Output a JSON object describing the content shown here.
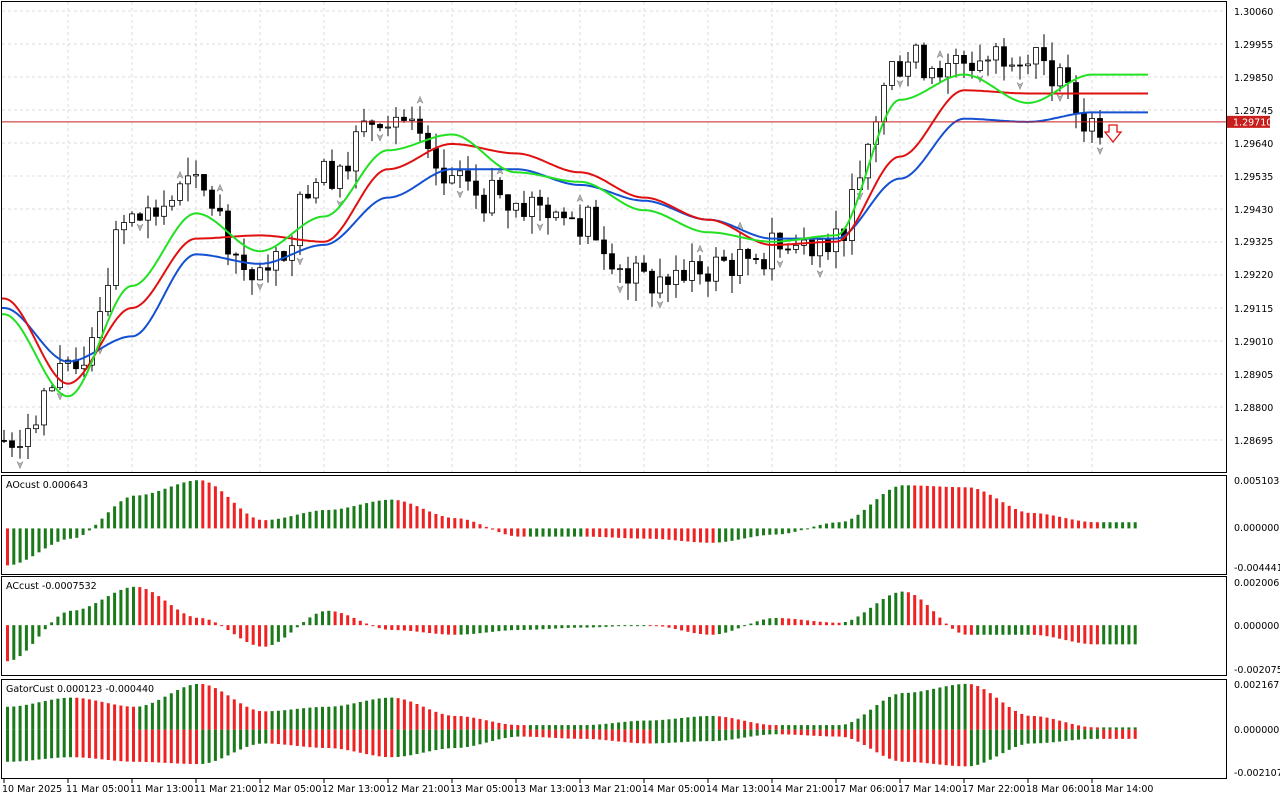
{
  "colors": {
    "bull_candle": "#ffffff",
    "bear_candle": "#000000",
    "alligator_jaw": "#1450d2",
    "alligator_teeth": "#e01010",
    "alligator_lips": "#22e022",
    "bar_up": "#1a7a1a",
    "bar_down": "#ee2222",
    "bid_line": "#c81e1e",
    "grid": "#dcdcdc"
  },
  "bid_price": "1.29710",
  "x_axis_labels": [
    "10 Mar 2025",
    "11 Mar 05:00",
    "11 Mar 13:00",
    "11 Mar 21:00",
    "12 Mar 05:00",
    "12 Mar 13:00",
    "12 Mar 21:00",
    "13 Mar 05:00",
    "13 Mar 13:00",
    "13 Mar 21:00",
    "14 Mar 05:00",
    "14 Mar 13:00",
    "14 Mar 21:00",
    "17 Mar 06:00",
    "17 Mar 14:00",
    "17 Mar 22:00",
    "18 Mar 06:00",
    "18 Mar 14:00"
  ],
  "main": {
    "price_labels": [
      "1.30060",
      "1.29955",
      "1.29850",
      "1.29745",
      "1.29640",
      "1.29535",
      "1.29430",
      "1.29325",
      "1.29220",
      "1.29115",
      "1.29010",
      "1.28905",
      "1.28800",
      "1.28695"
    ],
    "signal_arrow": "down-arrow-icon"
  },
  "panels": {
    "ao": {
      "title": "AOcust 0.000643",
      "scale": [
        "0.005103",
        "0.000000",
        "-0.004441"
      ]
    },
    "ac": {
      "title": "ACcust -0.0007532",
      "scale": [
        "0.0020061",
        "0.0000000",
        "-0.0020754"
      ]
    },
    "gator": {
      "title": "GatorCust 0.000123 -0.000440",
      "scale": [
        "0.002167",
        "0.000000",
        "-0.002107"
      ]
    }
  },
  "chart_data": [
    {
      "type": "candlestick",
      "title": "",
      "x": [
        "10 Mar 2025",
        "11 Mar 05:00",
        "11 Mar 13:00",
        "11 Mar 21:00",
        "12 Mar 05:00",
        "12 Mar 13:00",
        "12 Mar 21:00",
        "13 Mar 05:00",
        "13 Mar 13:00",
        "13 Mar 21:00",
        "14 Mar 05:00",
        "14 Mar 13:00",
        "14 Mar 21:00",
        "17 Mar 06:00",
        "17 Mar 14:00",
        "17 Mar 22:00",
        "18 Mar 06:00",
        "18 Mar 14:00"
      ],
      "close_at_labels": [
        1.287,
        1.289,
        1.294,
        1.295,
        1.292,
        1.2955,
        1.2975,
        1.295,
        1.2945,
        1.294,
        1.292,
        1.2925,
        1.293,
        1.2935,
        1.299,
        1.299,
        1.2995,
        1.2971
      ],
      "series": [
        {
          "name": "",
          "role": "jaw",
          "values": [
            1.2912,
            1.2895,
            1.2903,
            1.2929,
            1.2926,
            1.2932,
            1.2947,
            1.2956,
            1.2956,
            1.2951,
            1.2946,
            1.294,
            1.2934,
            1.2934,
            1.2953,
            1.2972,
            1.2971,
            1.2974
          ]
        },
        {
          "name": "",
          "role": "teeth",
          "values": [
            1.2915,
            1.2888,
            1.2912,
            1.2934,
            1.2935,
            1.2933,
            1.2956,
            1.2964,
            1.2961,
            1.2955,
            1.2947,
            1.294,
            1.2932,
            1.2933,
            1.296,
            1.2981,
            1.298,
            1.298
          ]
        },
        {
          "name": "",
          "role": "lips",
          "values": [
            1.291,
            1.2884,
            1.2919,
            1.2942,
            1.293,
            1.2941,
            1.2962,
            1.2967,
            1.2955,
            1.2952,
            1.2943,
            1.2936,
            1.2933,
            1.2935,
            1.2978,
            1.2986,
            1.2977,
            1.2986
          ]
        }
      ],
      "ylim": [
        1.286,
        1.3009
      ],
      "bid_line": 1.2971
    },
    {
      "type": "bar",
      "title": "AOcust 0.000643",
      "categories": [
        "10 Mar 2025",
        "11 Mar 05:00",
        "11 Mar 13:00",
        "11 Mar 21:00",
        "12 Mar 05:00",
        "12 Mar 13:00",
        "12 Mar 21:00",
        "13 Mar 05:00",
        "13 Mar 13:00",
        "13 Mar 21:00",
        "14 Mar 05:00",
        "14 Mar 13:00",
        "14 Mar 21:00",
        "17 Mar 06:00",
        "17 Mar 14:00",
        "17 Mar 22:00",
        "18 Mar 06:00",
        "18 Mar 14:00"
      ],
      "values": [
        -0.0036,
        -0.001,
        0.0032,
        0.0047,
        0.0008,
        0.0018,
        0.0028,
        0.001,
        -0.0008,
        -0.0008,
        -0.001,
        -0.0014,
        -0.0006,
        0.0006,
        0.0042,
        0.004,
        0.0015,
        0.0006
      ],
      "ylim": [
        -0.004441,
        0.005103
      ]
    },
    {
      "type": "bar",
      "title": "ACcust -0.0007532",
      "categories": [
        "10 Mar 2025",
        "11 Mar 05:00",
        "11 Mar 13:00",
        "11 Mar 21:00",
        "12 Mar 05:00",
        "12 Mar 13:00",
        "12 Mar 21:00",
        "13 Mar 05:00",
        "13 Mar 13:00",
        "13 Mar 21:00",
        "14 Mar 05:00",
        "14 Mar 13:00",
        "14 Mar 21:00",
        "17 Mar 06:00",
        "17 Mar 14:00",
        "17 Mar 22:00",
        "18 Mar 06:00",
        "18 Mar 14:00"
      ],
      "values": [
        -0.0015,
        0.0006,
        0.0016,
        0.0003,
        -0.0009,
        0.0006,
        -0.0002,
        -0.0004,
        -0.0002,
        -0.0001,
        0.0,
        -0.0004,
        0.0003,
        0.0001,
        0.0014,
        -0.0004,
        -0.0004,
        -0.0008
      ],
      "ylim": [
        -0.0020754,
        0.0020061
      ]
    },
    {
      "type": "bar",
      "title": "GatorCust 0.000123 -0.000440",
      "categories": [
        "10 Mar 2025",
        "11 Mar 05:00",
        "11 Mar 13:00",
        "11 Mar 21:00",
        "12 Mar 05:00",
        "12 Mar 13:00",
        "12 Mar 21:00",
        "13 Mar 05:00",
        "13 Mar 13:00",
        "13 Mar 21:00",
        "14 Mar 05:00",
        "14 Mar 13:00",
        "14 Mar 21:00",
        "17 Mar 06:00",
        "17 Mar 14:00",
        "17 Mar 22:00",
        "18 Mar 06:00",
        "18 Mar 14:00"
      ],
      "series": [
        {
          "name": "",
          "values": [
            0.001,
            0.0014,
            0.001,
            0.002,
            0.0008,
            0.001,
            0.0014,
            0.0006,
            0.0002,
            0.0002,
            0.0004,
            0.0006,
            0.0002,
            0.0002,
            0.0016,
            0.002,
            0.0006,
            0.0001
          ]
        },
        {
          "name": "",
          "values": [
            -0.0014,
            -0.0012,
            -0.0014,
            -0.0015,
            -0.0006,
            -0.0008,
            -0.0012,
            -0.0008,
            -0.0003,
            -0.0004,
            -0.0006,
            -0.0005,
            -0.0002,
            -0.0003,
            -0.0014,
            -0.0016,
            -0.0006,
            -0.0004
          ]
        }
      ],
      "ylim": [
        -0.002107,
        0.002167
      ]
    }
  ]
}
